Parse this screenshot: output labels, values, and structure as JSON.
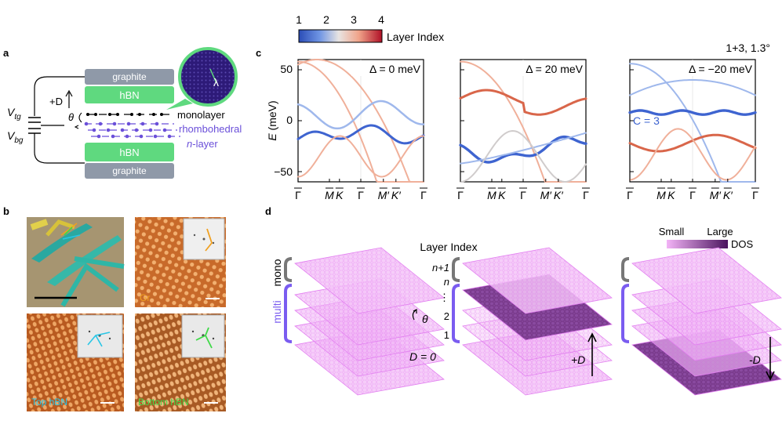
{
  "panel_labels": {
    "a": "a",
    "b": "b",
    "c": "c",
    "d": "d"
  },
  "colorbar": {
    "ticks": [
      "1",
      "2",
      "3",
      "4"
    ],
    "label": "Layer Index",
    "colors": [
      "#2f4fb8",
      "#4a74d8",
      "#9db8ea",
      "#e9e6e3",
      "#f2b49c",
      "#d9533e",
      "#b2182b"
    ]
  },
  "stack": {
    "top_graphite": "graphite",
    "top_hbn": "hBN",
    "monolayer": "monolayer",
    "rhombohedral": "rhombohedral",
    "n_layer_italic": "n",
    "n_layer_rest": "-layer",
    "bottom_hbn": "hBN",
    "bottom_graphite": "graphite",
    "vtg_main": "V",
    "vtg_sub": "tg",
    "vbg_main": "V",
    "vbg_sub": "bg",
    "plus_d": "+D",
    "theta": "θ",
    "lambda": "λ",
    "colors": {
      "graphite": "#8f99a8",
      "hbn": "#5fd97f",
      "rhombo": "#6a4fd9",
      "moire": "#3a1f8a"
    }
  },
  "micro": {
    "gr_label": "Gr",
    "top_label": "Top hBN",
    "bottom_label": "Bottom hBN",
    "colors": {
      "gr": "#f0a020",
      "top": "#29c6e6",
      "bottom": "#3fd948"
    }
  },
  "bands": {
    "header": "1+3, 1.3°",
    "ylabel_italic": "E",
    "ylabel_rest": " (meV)",
    "yticks": [
      "50",
      "0",
      "−50"
    ],
    "xticks": [
      "Γ",
      "M",
      "K",
      "Γ",
      "M′",
      "K′",
      "Γ"
    ],
    "panels": [
      {
        "delta": "Δ = 0 meV"
      },
      {
        "delta": "Δ = 20 meV"
      },
      {
        "delta": "Δ = −20 meV",
        "chern": "C = 3"
      }
    ]
  },
  "chart_data": [
    {
      "type": "line",
      "title": "Δ = 0 meV",
      "ylabel": "E (meV)",
      "ylim": [
        -60,
        60
      ],
      "categories": [
        "Γ",
        "M",
        "K",
        "Γ",
        "M′",
        "K′",
        "Γ"
      ]
    },
    {
      "type": "line",
      "title": "Δ = 20 meV",
      "ylabel": "E (meV)",
      "ylim": [
        -60,
        60
      ],
      "categories": [
        "Γ",
        "M",
        "K",
        "Γ",
        "M′",
        "K′",
        "Γ"
      ]
    },
    {
      "type": "line",
      "title": "Δ = −20 meV",
      "ylabel": "E (meV)",
      "ylim": [
        -60,
        60
      ],
      "categories": [
        "Γ",
        "M",
        "K",
        "Γ",
        "M′",
        "K′",
        "Γ"
      ]
    }
  ],
  "dos": {
    "small": "Small",
    "large": "Large",
    "dos": "DOS",
    "layer_index": "Layer Index",
    "mono": "mono",
    "multi": "multi",
    "n_plus_1": "n+1",
    "n": "n",
    "vdots": "⋮",
    "two": "2",
    "one": "1",
    "d_zero": "D = 0",
    "plus_d": "+D",
    "minus_d": "-D",
    "theta": "θ",
    "colors": {
      "light": "#e79cf2",
      "dark": "#5a1e6e",
      "bracket": "#7a5cf0"
    }
  }
}
